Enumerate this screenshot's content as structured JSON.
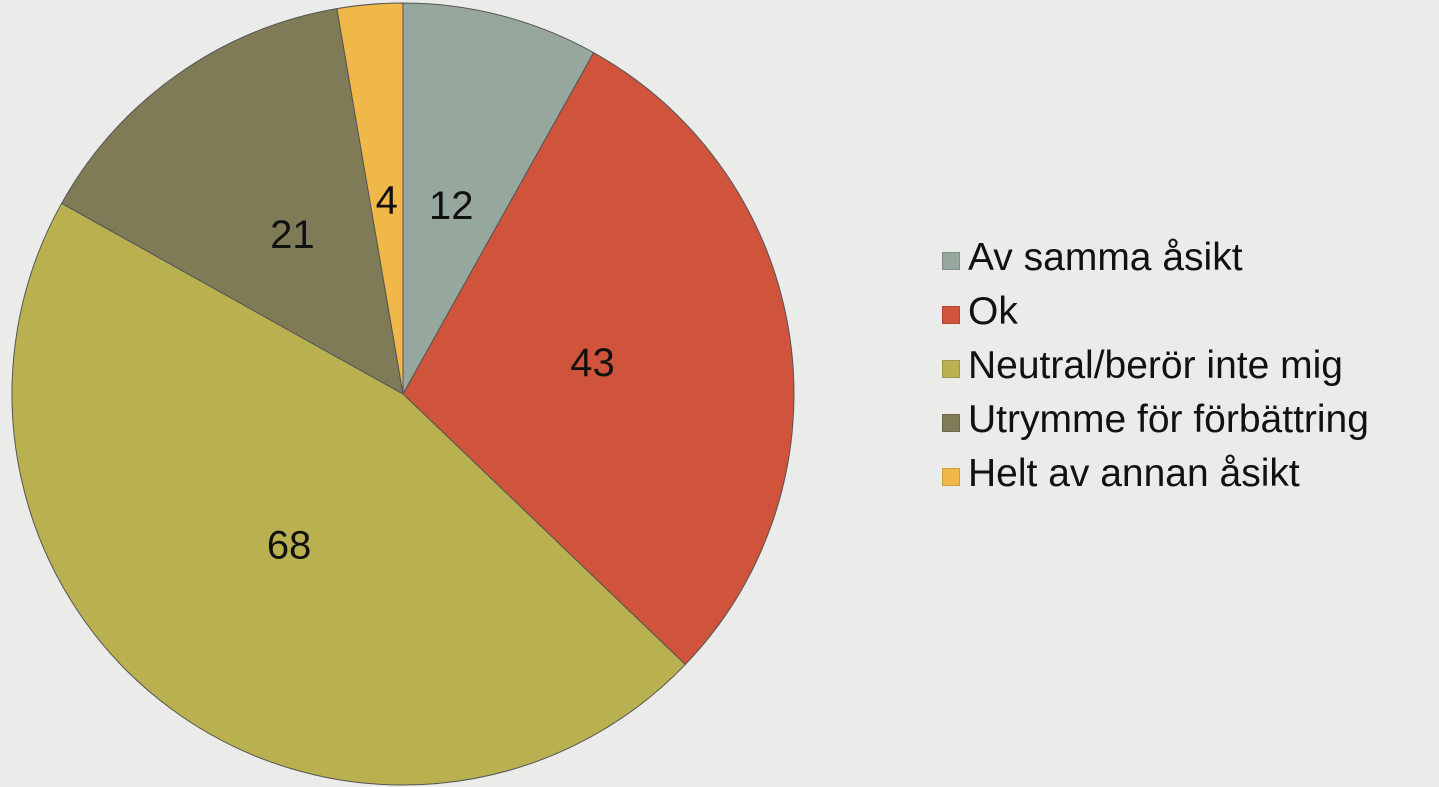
{
  "chart_data": {
    "type": "pie",
    "categories": [
      "Av samma åsikt",
      "Ok",
      "Neutral/berör inte mig",
      "Utrymme för förbättring",
      "Helt av annan åsikt"
    ],
    "values": [
      12,
      43,
      68,
      21,
      4
    ],
    "colors": [
      "#96a89e",
      "#d0543b",
      "#b9b150",
      "#7f7b56",
      "#f0b848"
    ],
    "legend": "right"
  }
}
